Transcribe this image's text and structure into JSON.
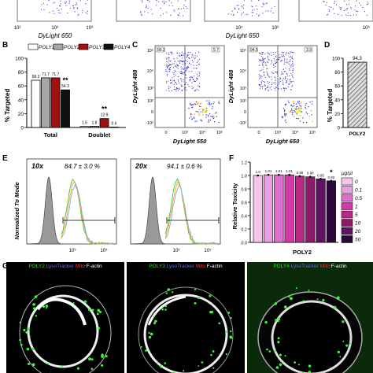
{
  "panel_letters": {
    "b": "B",
    "c": "C",
    "d": "D",
    "e": "E",
    "f": "F",
    "g": "G"
  },
  "top_row": {
    "axis_labels": [
      "DyLight 650",
      "DyLight 650"
    ],
    "ticks": [
      "10²",
      "10⁴",
      "10⁶",
      "10⁴",
      "10⁶",
      "10⁶"
    ]
  },
  "flow_c": {
    "ylabels": [
      "DyLight 488",
      "DyLight 488"
    ],
    "xlabels": [
      "DyLight 550",
      "DyLight 650"
    ],
    "yticks": [
      "10⁵",
      "10⁴",
      "10³",
      "10²",
      "0",
      "-10²"
    ],
    "xticks": [
      "0",
      "10³",
      "10⁴",
      "10⁵"
    ],
    "gate_values": [
      "90.2",
      "5.7",
      "94.5",
      "3.9"
    ]
  },
  "histograms": {
    "ylabel": "Normalized To Mode",
    "left": {
      "mag": "10x",
      "stat": "84.7 ± 3.0 %"
    },
    "right": {
      "mag": "20x",
      "stat": "94.1 ± 0.6 %"
    },
    "ticks": [
      "10³",
      "10⁵",
      "10³",
      "10⁵"
    ]
  },
  "microscopy": [
    {
      "p": "POLY2 ",
      "l": "LysoTracker ",
      "m": "Mito ",
      "f": "F-actin"
    },
    {
      "p": "POLY3 ",
      "l": "LysoTracker ",
      "m": "Mito ",
      "f": "F-actin"
    },
    {
      "p": "POLY4 ",
      "l": "LysoTracker ",
      "m": "Mito ",
      "f": "F-actin"
    }
  ],
  "colors": {
    "poly1": "#ffffff",
    "poly2": "#a8a8a8",
    "poly3": "#a01010",
    "poly4": "#111111",
    "green": "#22c022",
    "blue": "#3a3aff",
    "red": "#ff2020"
  },
  "chart_data": [
    {
      "panel": "B",
      "type": "bar",
      "ylabel": "% Targeted",
      "categories": [
        "Total",
        "Doublet"
      ],
      "ylim": [
        0,
        100
      ],
      "yticks": [
        "0",
        "20",
        "40",
        "60",
        "80",
        "100"
      ],
      "series": [
        {
          "name": "POLY1",
          "values": [
            68.2,
            1.5
          ]
        },
        {
          "name": "POLY2",
          "values": [
            71.7,
            1.8
          ]
        },
        {
          "name": "POLY3",
          "values": [
            71.7,
            12.9
          ]
        },
        {
          "name": "POLY4",
          "values": [
            54.3,
            0.6
          ]
        }
      ],
      "value_labels": [
        [
          "68.2",
          "71.7",
          "71.7",
          "54.3"
        ],
        [
          "1.5",
          "1.8",
          "12.9",
          "0.6"
        ]
      ],
      "annotations": [
        "**",
        "**"
      ]
    },
    {
      "panel": "D",
      "type": "bar",
      "ylabel": "% Targeted",
      "categories": [
        "POLY2"
      ],
      "values": [
        94.3
      ],
      "value_labels": [
        "94.3"
      ],
      "ylim": [
        0,
        100
      ],
      "yticks": [
        "0",
        "20",
        "40",
        "60",
        "80",
        "100"
      ]
    },
    {
      "panel": "F",
      "type": "bar",
      "ylabel": "Relative Toxicity",
      "xlabel": "POLY2",
      "legend_title": "μg/μl",
      "categories": [
        "0",
        "0.1",
        "0.5",
        "1",
        "5",
        "10",
        "20",
        "50"
      ],
      "values": [
        1.0,
        1.01,
        1.01,
        1.01,
        0.99,
        0.98,
        0.95,
        0.92
      ],
      "value_labels": [
        "1.0",
        "1.01",
        "1.01",
        "1.01",
        "0.99",
        "0.98",
        "0.95",
        "0.92"
      ],
      "ylim": [
        0,
        1.2
      ],
      "yticks": [
        "0.0",
        "0.2",
        "0.4",
        "0.6",
        "0.8",
        "1.0",
        "1.2"
      ],
      "annotations": [
        "*"
      ],
      "bar_colors": [
        "#f3c6ea",
        "#e5a2dc",
        "#df6fcf",
        "#d33aa8",
        "#b92a86",
        "#8f1a6a",
        "#5e1460",
        "#2a0838"
      ]
    }
  ]
}
